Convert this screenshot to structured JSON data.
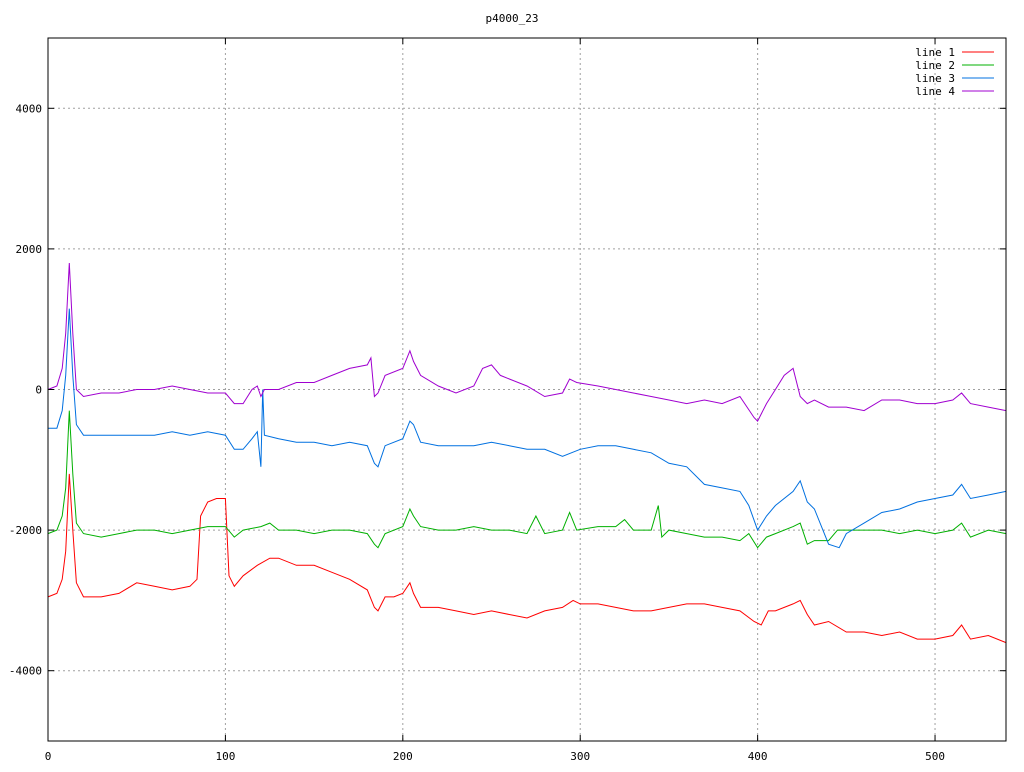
{
  "chart_data": {
    "type": "line",
    "title": "p4000_23",
    "xlabel": "",
    "ylabel": "",
    "xlim": [
      0,
      540
    ],
    "ylim": [
      -5000,
      5000
    ],
    "x_ticks": [
      0,
      100,
      200,
      300,
      400,
      500
    ],
    "y_ticks": [
      -4000,
      -2000,
      0,
      2000,
      4000
    ],
    "x_tick_labels": [
      "0",
      "100",
      "200",
      "300",
      "400",
      "500"
    ],
    "y_tick_labels": [
      "-4000",
      "-2000",
      "0",
      "2000",
      "4000"
    ],
    "grid": true,
    "legend_position": "top-right",
    "series": [
      {
        "name": "line 1",
        "color": "#ff0000",
        "points": [
          [
            0,
            -2950
          ],
          [
            5,
            -2900
          ],
          [
            8,
            -2700
          ],
          [
            10,
            -2300
          ],
          [
            12,
            -1200
          ],
          [
            14,
            -2000
          ],
          [
            16,
            -2750
          ],
          [
            20,
            -2950
          ],
          [
            30,
            -2950
          ],
          [
            40,
            -2900
          ],
          [
            50,
            -2750
          ],
          [
            60,
            -2800
          ],
          [
            70,
            -2850
          ],
          [
            80,
            -2800
          ],
          [
            84,
            -2700
          ],
          [
            86,
            -1800
          ],
          [
            90,
            -1600
          ],
          [
            95,
            -1550
          ],
          [
            100,
            -1550
          ],
          [
            102,
            -2650
          ],
          [
            105,
            -2800
          ],
          [
            110,
            -2650
          ],
          [
            118,
            -2500
          ],
          [
            125,
            -2400
          ],
          [
            130,
            -2400
          ],
          [
            140,
            -2500
          ],
          [
            150,
            -2500
          ],
          [
            160,
            -2600
          ],
          [
            170,
            -2700
          ],
          [
            180,
            -2850
          ],
          [
            184,
            -3100
          ],
          [
            186,
            -3150
          ],
          [
            190,
            -2950
          ],
          [
            195,
            -2950
          ],
          [
            200,
            -2900
          ],
          [
            204,
            -2750
          ],
          [
            206,
            -2900
          ],
          [
            210,
            -3100
          ],
          [
            220,
            -3100
          ],
          [
            230,
            -3150
          ],
          [
            240,
            -3200
          ],
          [
            250,
            -3150
          ],
          [
            260,
            -3200
          ],
          [
            270,
            -3250
          ],
          [
            280,
            -3150
          ],
          [
            290,
            -3100
          ],
          [
            296,
            -3000
          ],
          [
            300,
            -3050
          ],
          [
            310,
            -3050
          ],
          [
            320,
            -3100
          ],
          [
            330,
            -3150
          ],
          [
            340,
            -3150
          ],
          [
            350,
            -3100
          ],
          [
            360,
            -3050
          ],
          [
            370,
            -3050
          ],
          [
            380,
            -3100
          ],
          [
            390,
            -3150
          ],
          [
            398,
            -3300
          ],
          [
            402,
            -3350
          ],
          [
            406,
            -3150
          ],
          [
            410,
            -3150
          ],
          [
            420,
            -3050
          ],
          [
            424,
            -3000
          ],
          [
            428,
            -3200
          ],
          [
            432,
            -3350
          ],
          [
            440,
            -3300
          ],
          [
            450,
            -3450
          ],
          [
            460,
            -3450
          ],
          [
            470,
            -3500
          ],
          [
            480,
            -3450
          ],
          [
            490,
            -3550
          ],
          [
            500,
            -3550
          ],
          [
            510,
            -3500
          ],
          [
            515,
            -3350
          ],
          [
            520,
            -3550
          ],
          [
            530,
            -3500
          ],
          [
            540,
            -3600
          ]
        ]
      },
      {
        "name": "line 2",
        "color": "#00b000",
        "points": [
          [
            0,
            -2050
          ],
          [
            5,
            -2000
          ],
          [
            8,
            -1800
          ],
          [
            10,
            -1400
          ],
          [
            12,
            -300
          ],
          [
            14,
            -1200
          ],
          [
            16,
            -1900
          ],
          [
            20,
            -2050
          ],
          [
            30,
            -2100
          ],
          [
            40,
            -2050
          ],
          [
            50,
            -2000
          ],
          [
            60,
            -2000
          ],
          [
            70,
            -2050
          ],
          [
            80,
            -2000
          ],
          [
            90,
            -1950
          ],
          [
            100,
            -1950
          ],
          [
            105,
            -2100
          ],
          [
            110,
            -2000
          ],
          [
            120,
            -1950
          ],
          [
            125,
            -1900
          ],
          [
            130,
            -2000
          ],
          [
            140,
            -2000
          ],
          [
            150,
            -2050
          ],
          [
            160,
            -2000
          ],
          [
            170,
            -2000
          ],
          [
            180,
            -2050
          ],
          [
            184,
            -2200
          ],
          [
            186,
            -2250
          ],
          [
            190,
            -2050
          ],
          [
            200,
            -1950
          ],
          [
            204,
            -1700
          ],
          [
            206,
            -1800
          ],
          [
            210,
            -1950
          ],
          [
            220,
            -2000
          ],
          [
            230,
            -2000
          ],
          [
            240,
            -1950
          ],
          [
            250,
            -2000
          ],
          [
            260,
            -2000
          ],
          [
            270,
            -2050
          ],
          [
            275,
            -1800
          ],
          [
            280,
            -2050
          ],
          [
            290,
            -2000
          ],
          [
            294,
            -1750
          ],
          [
            298,
            -2000
          ],
          [
            310,
            -1950
          ],
          [
            320,
            -1950
          ],
          [
            325,
            -1850
          ],
          [
            330,
            -2000
          ],
          [
            340,
            -2000
          ],
          [
            344,
            -1650
          ],
          [
            346,
            -2100
          ],
          [
            350,
            -2000
          ],
          [
            360,
            -2050
          ],
          [
            370,
            -2100
          ],
          [
            380,
            -2100
          ],
          [
            390,
            -2150
          ],
          [
            395,
            -2050
          ],
          [
            400,
            -2250
          ],
          [
            405,
            -2100
          ],
          [
            410,
            -2050
          ],
          [
            420,
            -1950
          ],
          [
            424,
            -1900
          ],
          [
            428,
            -2200
          ],
          [
            432,
            -2150
          ],
          [
            440,
            -2150
          ],
          [
            445,
            -2000
          ],
          [
            450,
            -2000
          ],
          [
            460,
            -2000
          ],
          [
            470,
            -2000
          ],
          [
            480,
            -2050
          ],
          [
            490,
            -2000
          ],
          [
            500,
            -2050
          ],
          [
            510,
            -2000
          ],
          [
            515,
            -1900
          ],
          [
            520,
            -2100
          ],
          [
            530,
            -2000
          ],
          [
            540,
            -2050
          ]
        ]
      },
      {
        "name": "line 3",
        "color": "#0070e0",
        "points": [
          [
            0,
            -550
          ],
          [
            5,
            -550
          ],
          [
            8,
            -300
          ],
          [
            10,
            200
          ],
          [
            12,
            1150
          ],
          [
            14,
            200
          ],
          [
            16,
            -500
          ],
          [
            20,
            -650
          ],
          [
            30,
            -650
          ],
          [
            40,
            -650
          ],
          [
            50,
            -650
          ],
          [
            60,
            -650
          ],
          [
            70,
            -600
          ],
          [
            80,
            -650
          ],
          [
            90,
            -600
          ],
          [
            100,
            -650
          ],
          [
            105,
            -850
          ],
          [
            110,
            -850
          ],
          [
            115,
            -700
          ],
          [
            118,
            -600
          ],
          [
            120,
            -1100
          ],
          [
            121,
            0
          ],
          [
            122,
            -650
          ],
          [
            130,
            -700
          ],
          [
            140,
            -750
          ],
          [
            150,
            -750
          ],
          [
            160,
            -800
          ],
          [
            170,
            -750
          ],
          [
            180,
            -800
          ],
          [
            184,
            -1050
          ],
          [
            186,
            -1100
          ],
          [
            190,
            -800
          ],
          [
            200,
            -700
          ],
          [
            204,
            -450
          ],
          [
            206,
            -500
          ],
          [
            210,
            -750
          ],
          [
            220,
            -800
          ],
          [
            230,
            -800
          ],
          [
            240,
            -800
          ],
          [
            250,
            -750
          ],
          [
            260,
            -800
          ],
          [
            270,
            -850
          ],
          [
            280,
            -850
          ],
          [
            290,
            -950
          ],
          [
            300,
            -850
          ],
          [
            310,
            -800
          ],
          [
            320,
            -800
          ],
          [
            330,
            -850
          ],
          [
            340,
            -900
          ],
          [
            350,
            -1050
          ],
          [
            360,
            -1100
          ],
          [
            370,
            -1350
          ],
          [
            380,
            -1400
          ],
          [
            390,
            -1450
          ],
          [
            395,
            -1650
          ],
          [
            400,
            -2000
          ],
          [
            405,
            -1800
          ],
          [
            410,
            -1650
          ],
          [
            420,
            -1450
          ],
          [
            424,
            -1300
          ],
          [
            428,
            -1600
          ],
          [
            432,
            -1700
          ],
          [
            440,
            -2200
          ],
          [
            446,
            -2250
          ],
          [
            450,
            -2050
          ],
          [
            460,
            -1900
          ],
          [
            470,
            -1750
          ],
          [
            480,
            -1700
          ],
          [
            490,
            -1600
          ],
          [
            500,
            -1550
          ],
          [
            510,
            -1500
          ],
          [
            515,
            -1350
          ],
          [
            520,
            -1550
          ],
          [
            530,
            -1500
          ],
          [
            540,
            -1450
          ]
        ]
      },
      {
        "name": "line 4",
        "color": "#a000d0",
        "points": [
          [
            0,
            0
          ],
          [
            5,
            50
          ],
          [
            8,
            300
          ],
          [
            10,
            800
          ],
          [
            12,
            1800
          ],
          [
            14,
            800
          ],
          [
            16,
            0
          ],
          [
            20,
            -100
          ],
          [
            30,
            -50
          ],
          [
            40,
            -50
          ],
          [
            50,
            0
          ],
          [
            60,
            0
          ],
          [
            70,
            50
          ],
          [
            80,
            0
          ],
          [
            90,
            -50
          ],
          [
            100,
            -50
          ],
          [
            105,
            -200
          ],
          [
            110,
            -200
          ],
          [
            115,
            0
          ],
          [
            118,
            50
          ],
          [
            120,
            -100
          ],
          [
            122,
            0
          ],
          [
            130,
            0
          ],
          [
            140,
            100
          ],
          [
            150,
            100
          ],
          [
            160,
            200
          ],
          [
            170,
            300
          ],
          [
            180,
            350
          ],
          [
            182,
            450
          ],
          [
            184,
            -100
          ],
          [
            186,
            -50
          ],
          [
            190,
            200
          ],
          [
            200,
            300
          ],
          [
            204,
            550
          ],
          [
            206,
            400
          ],
          [
            210,
            200
          ],
          [
            220,
            50
          ],
          [
            230,
            -50
          ],
          [
            240,
            50
          ],
          [
            245,
            300
          ],
          [
            250,
            350
          ],
          [
            255,
            200
          ],
          [
            260,
            150
          ],
          [
            270,
            50
          ],
          [
            280,
            -100
          ],
          [
            290,
            -50
          ],
          [
            294,
            150
          ],
          [
            298,
            100
          ],
          [
            310,
            50
          ],
          [
            320,
            0
          ],
          [
            330,
            -50
          ],
          [
            340,
            -100
          ],
          [
            350,
            -150
          ],
          [
            360,
            -200
          ],
          [
            370,
            -150
          ],
          [
            380,
            -200
          ],
          [
            390,
            -100
          ],
          [
            398,
            -400
          ],
          [
            400,
            -450
          ],
          [
            405,
            -200
          ],
          [
            410,
            0
          ],
          [
            415,
            200
          ],
          [
            420,
            300
          ],
          [
            424,
            -100
          ],
          [
            428,
            -200
          ],
          [
            432,
            -150
          ],
          [
            440,
            -250
          ],
          [
            450,
            -250
          ],
          [
            460,
            -300
          ],
          [
            470,
            -150
          ],
          [
            480,
            -150
          ],
          [
            490,
            -200
          ],
          [
            500,
            -200
          ],
          [
            510,
            -150
          ],
          [
            515,
            -50
          ],
          [
            520,
            -200
          ],
          [
            530,
            -250
          ],
          [
            540,
            -300
          ]
        ]
      }
    ]
  }
}
